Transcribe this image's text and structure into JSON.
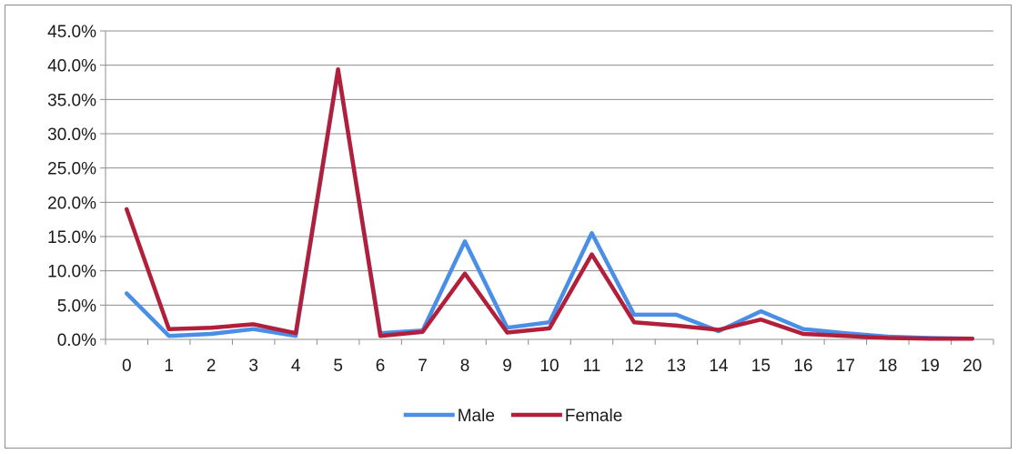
{
  "chart_data": {
    "type": "line",
    "title": "",
    "xlabel": "",
    "ylabel": "",
    "x": [
      0,
      1,
      2,
      3,
      4,
      5,
      6,
      7,
      8,
      9,
      10,
      11,
      12,
      13,
      14,
      15,
      16,
      17,
      18,
      19,
      20
    ],
    "x_tick_labels": [
      "0",
      "1",
      "2",
      "3",
      "4",
      "5",
      "6",
      "7",
      "8",
      "9",
      "10",
      "11",
      "12",
      "13",
      "14",
      "15",
      "16",
      "17",
      "18",
      "19",
      "20"
    ],
    "ylim": [
      0,
      45
    ],
    "y_ticks": [
      0,
      5,
      10,
      15,
      20,
      25,
      30,
      35,
      40,
      45
    ],
    "y_tick_labels": [
      "0.0%",
      "5.0%",
      "10.0%",
      "15.0%",
      "20.0%",
      "25.0%",
      "30.0%",
      "35.0%",
      "40.0%",
      "45.0%"
    ],
    "grid": "horizontal",
    "legend_position": "bottom",
    "series": [
      {
        "name": "Male",
        "color": "#4A8FE7",
        "values": [
          6.7,
          0.5,
          0.8,
          1.5,
          0.5,
          39.2,
          0.9,
          1.3,
          14.3,
          1.7,
          2.5,
          15.5,
          3.6,
          3.6,
          1.2,
          4.1,
          1.5,
          0.9,
          0.4,
          0.2,
          0.1
        ]
      },
      {
        "name": "Female",
        "color": "#B21F3A",
        "values": [
          19.0,
          1.5,
          1.7,
          2.2,
          0.9,
          39.4,
          0.5,
          1.1,
          9.6,
          1.0,
          1.6,
          12.4,
          2.5,
          2.0,
          1.4,
          2.9,
          0.8,
          0.5,
          0.2,
          0.1,
          0.1
        ]
      }
    ]
  }
}
